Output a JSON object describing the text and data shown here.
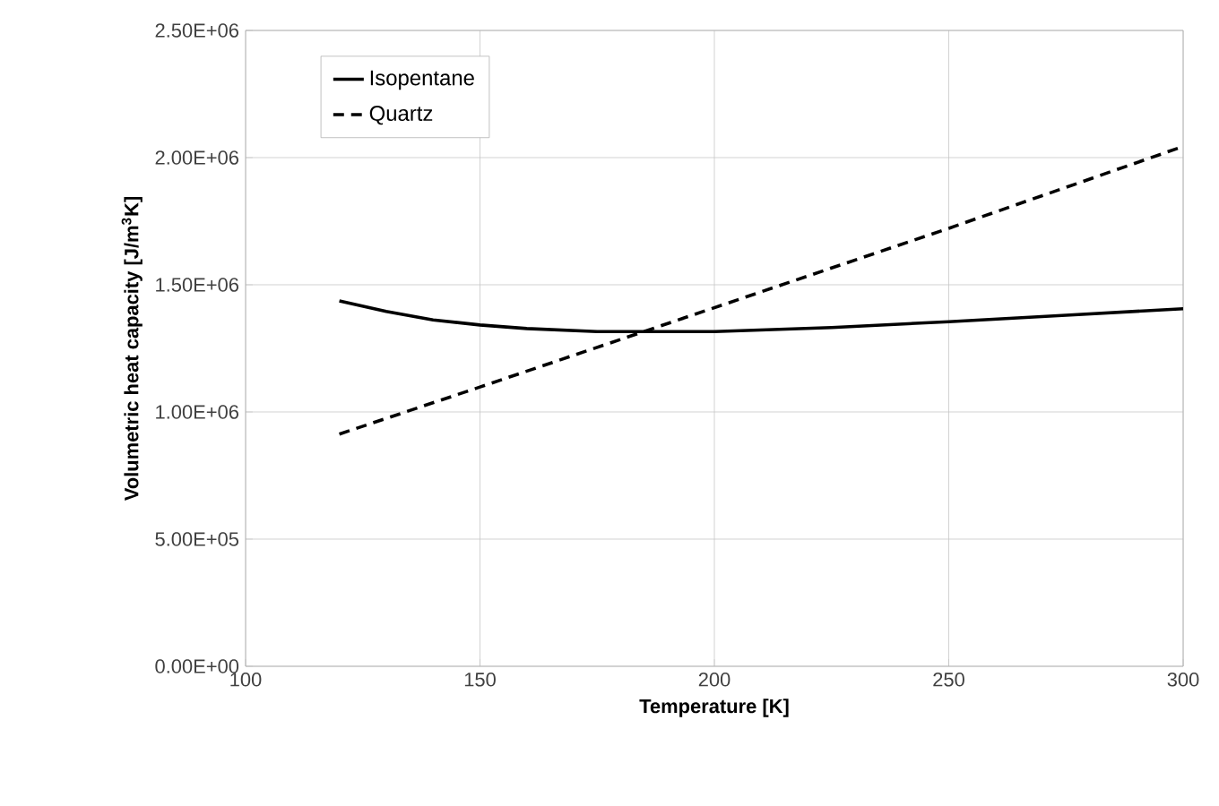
{
  "chart_data": {
    "type": "line",
    "xlabel": "Temperature [K]",
    "ylabel": "Volumetric heat capacity [J/m$^{3}$K]",
    "xlim": [
      100,
      300
    ],
    "xticks": [
      100,
      150,
      200,
      250,
      300
    ],
    "ylim": [
      0,
      2500000
    ],
    "yticks": [
      {
        "value": 0,
        "label": "0.00E+00"
      },
      {
        "value": 500000,
        "label": "5.00E+05"
      },
      {
        "value": 1000000,
        "label": "1.00E+06"
      },
      {
        "value": 1500000,
        "label": "1.50E+06"
      },
      {
        "value": 2000000,
        "label": "2.00E+06"
      },
      {
        "value": 2500000,
        "label": "2.50E+06"
      }
    ],
    "grid": true,
    "legend": "top left",
    "marker": "none",
    "series": [
      {
        "name": "Isopentane",
        "color": "#000000",
        "line_style": "solid",
        "x": [
          120,
          130,
          140,
          150,
          160,
          175,
          200,
          225,
          250,
          275,
          300
        ],
        "values": [
          1437000,
          1395000,
          1362000,
          1342000,
          1328000,
          1316000,
          1316000,
          1332000,
          1355000,
          1380000,
          1406000
        ]
      },
      {
        "name": "Quartz",
        "color": "#000000",
        "line_style": "dashed",
        "x": [
          120,
          150,
          200,
          250,
          300
        ],
        "values": [
          913000,
          1098000,
          1410000,
          1722000,
          2044000
        ]
      }
    ]
  }
}
